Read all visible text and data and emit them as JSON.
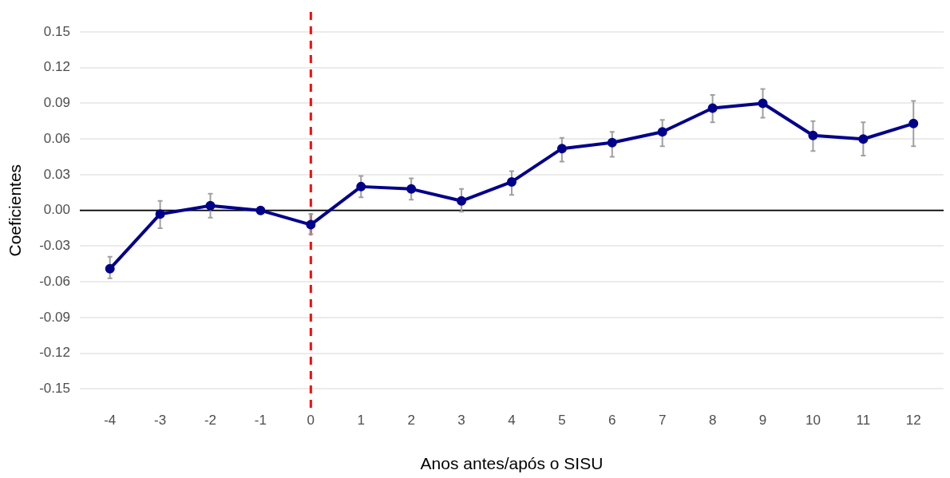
{
  "chart_data": {
    "type": "line",
    "xlabel": "Anos antes/após o SISU",
    "ylabel": "Coeficientes",
    "x": [
      -4,
      -3,
      -2,
      -1,
      0,
      1,
      2,
      3,
      4,
      5,
      6,
      7,
      8,
      9,
      10,
      11,
      12
    ],
    "series": [
      {
        "color": "#00008b",
        "values": [
          -0.049,
          -0.003,
          0.004,
          0,
          -0.012,
          0.02,
          0.018,
          0.008,
          0.024,
          0.052,
          0.057,
          0.066,
          0.086,
          0.09,
          0.063,
          0.06,
          0.073
        ],
        "errors": [
          [
            -0.057,
            -0.039
          ],
          [
            -0.015,
            0.008
          ],
          [
            -0.006,
            0.014
          ],
          null,
          [
            -0.02,
            -0.003
          ],
          [
            0.011,
            0.029
          ],
          [
            0.009,
            0.027
          ],
          [
            -0.001,
            0.018
          ],
          [
            0.013,
            0.033
          ],
          [
            0.041,
            0.061
          ],
          [
            0.045,
            0.066
          ],
          [
            0.054,
            0.076
          ],
          [
            0.074,
            0.097
          ],
          [
            0.078,
            0.102
          ],
          [
            0.05,
            0.075
          ],
          [
            0.046,
            0.074
          ],
          [
            0.054,
            0.092
          ]
        ]
      }
    ],
    "marker": "circle",
    "line_style": "solid",
    "grid": "y",
    "legend": false,
    "xlim": [
      -4.6,
      12.6
    ],
    "xticks": [
      -4,
      -3,
      -2,
      -1,
      0,
      1,
      2,
      3,
      4,
      5,
      6,
      7,
      8,
      9,
      10,
      11,
      12
    ],
    "ylim": [
      -0.15,
      0.15
    ],
    "yticks": [
      {
        "value": -0.15,
        "label": "-0.15"
      },
      {
        "value": -0.12,
        "label": "-0.12"
      },
      {
        "value": -0.09,
        "label": "-0.09"
      },
      {
        "value": -0.06,
        "label": "-0.06"
      },
      {
        "value": -0.03,
        "label": "-0.03"
      },
      {
        "value": 0,
        "label": "0.00"
      },
      {
        "value": 0.03,
        "label": "0.03"
      },
      {
        "value": 0.06,
        "label": "0.06"
      },
      {
        "value": 0.09,
        "label": "0.09"
      },
      {
        "value": 0.12,
        "label": "0.12"
      },
      {
        "value": 0.15,
        "label": "0.15"
      }
    ],
    "ref_lines": [
      {
        "axis": "x",
        "value": 0,
        "color": "#ff0000",
        "line_style": "dashed"
      },
      {
        "axis": "y",
        "value": 0,
        "color": "#000000",
        "line_style": "solid"
      }
    ]
  }
}
